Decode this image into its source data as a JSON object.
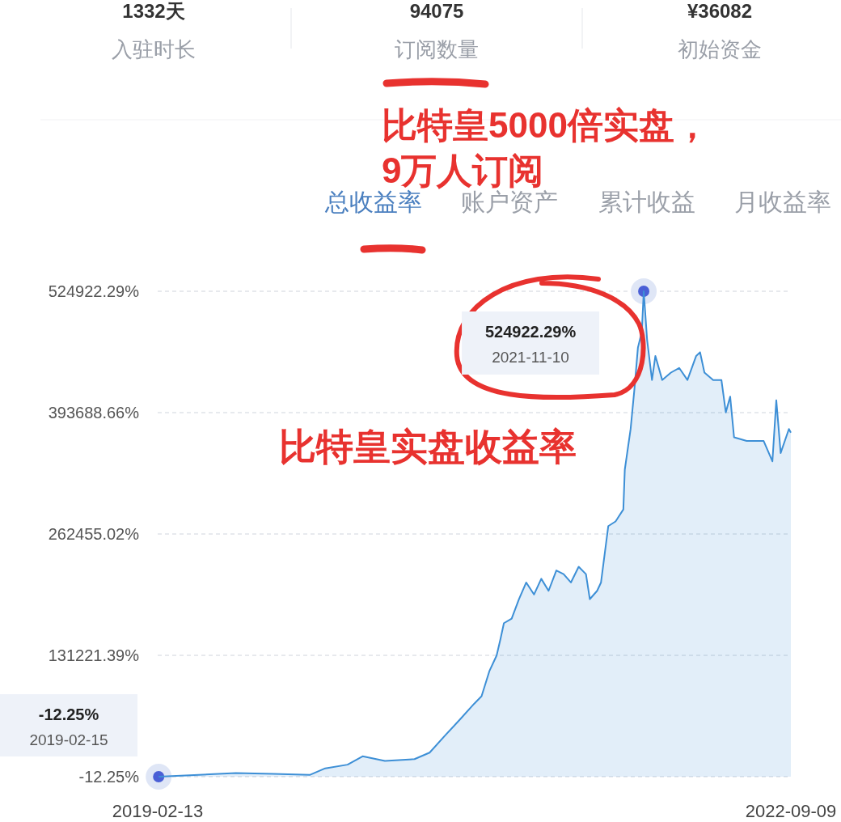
{
  "chart_data": {
    "type": "area",
    "color": "#3d8fd6",
    "grid": "y",
    "xlim": [
      "2019-02-13",
      "2022-09-09"
    ],
    "xticks": [
      {
        "value": "2019-02-13",
        "label": "2019-02-13"
      },
      {
        "value": "2022-09-09",
        "label": "2022-09-09"
      }
    ],
    "ylim": [
      -12.25,
      524922.29
    ],
    "yticks": [
      {
        "value": -12.25,
        "label": "-12.25%"
      },
      {
        "value": 131221.39,
        "label": "131221.39%"
      },
      {
        "value": 262455.02,
        "label": "262455.02%"
      },
      {
        "value": 393688.66,
        "label": "393688.66%"
      },
      {
        "value": 524922.29,
        "label": "524922.29%"
      }
    ],
    "x": [
      "2019-02-15",
      "2019-05-08",
      "2019-07-24",
      "2019-10-09",
      "2019-12-24",
      "2020-01-24",
      "2020-03-10",
      "2020-04-10",
      "2020-05-26",
      "2020-07-26",
      "2020-08-26",
      "2020-09-26",
      "2020-10-26",
      "2020-11-26",
      "2020-12-11",
      "2020-12-27",
      "2021-01-11",
      "2021-01-19",
      "2021-01-26",
      "2021-02-11",
      "2021-02-26",
      "2021-03-13",
      "2021-03-29",
      "2021-04-13",
      "2021-04-28",
      "2021-05-14",
      "2021-05-29",
      "2021-06-13",
      "2021-06-29",
      "2021-07-14",
      "2021-07-22",
      "2021-08-06",
      "2021-08-14",
      "2021-08-29",
      "2021-09-13",
      "2021-09-29",
      "2021-10-02",
      "2021-10-14",
      "2021-10-22",
      "2021-10-29",
      "2021-11-06",
      "2021-11-10",
      "2021-11-17",
      "2021-11-27",
      "2021-12-04",
      "2021-12-18",
      "2022-01-05",
      "2022-01-22",
      "2022-02-08",
      "2022-02-26",
      "2022-03-06",
      "2022-03-15",
      "2022-04-02",
      "2022-04-19",
      "2022-04-28",
      "2022-05-07",
      "2022-05-15",
      "2022-06-10",
      "2022-07-15",
      "2022-08-02",
      "2022-08-10",
      "2022-08-19",
      "2022-09-05",
      "2022-09-09"
    ],
    "values": [
      -12.25,
      2000,
      4000,
      3000,
      2000,
      9000,
      13000,
      22000,
      17000,
      19000,
      26000,
      44000,
      61000,
      79000,
      87000,
      114000,
      131000,
      149000,
      166000,
      171000,
      192000,
      210000,
      197000,
      214000,
      201000,
      223000,
      219000,
      210000,
      227000,
      219000,
      192000,
      201000,
      210000,
      271000,
      276000,
      289000,
      332000,
      376000,
      420000,
      464000,
      481000,
      524922.29,
      472000,
      429000,
      455000,
      429000,
      437000,
      442000,
      429000,
      455000,
      459000,
      437000,
      429000,
      429000,
      394000,
      411000,
      367000,
      363000,
      363000,
      341000,
      407000,
      350000,
      376000,
      372000
    ],
    "annotations": [
      "1332天",
      "入驻时长",
      "94075",
      "订阅数量",
      "¥36082",
      "初始资金",
      "总收益率",
      "账户资产",
      "累计收益",
      "月收益率",
      "比特皇5000倍实盘，",
      "9万人订阅",
      "比特皇实盘收益率",
      "524922.29%",
      "2021-11-10",
      "-12.25%",
      "2019-02-15"
    ]
  }
}
